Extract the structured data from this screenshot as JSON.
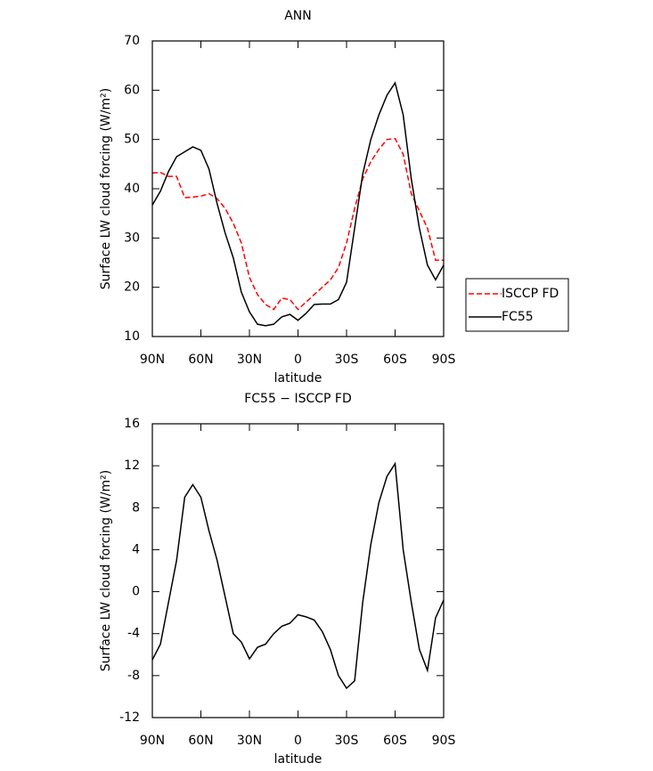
{
  "chart_data": [
    {
      "type": "line",
      "title": "ANN",
      "xlabel": "latitude",
      "ylabel": "Surface LW cloud forcing (W/m²)",
      "x": [
        90,
        85,
        80,
        75,
        70,
        65,
        60,
        55,
        50,
        45,
        40,
        35,
        30,
        25,
        20,
        15,
        10,
        5,
        0,
        -5,
        -10,
        -15,
        -20,
        -25,
        -30,
        -35,
        -40,
        -45,
        -50,
        -55,
        -60,
        -65,
        -70,
        -75,
        -80,
        -85,
        -90
      ],
      "series": [
        {
          "name": "ISCCP FD",
          "color": "#ff0000",
          "dash": true,
          "values": [
            43.2,
            43.3,
            42.5,
            42.5,
            38.2,
            38.3,
            38.5,
            39,
            38,
            36,
            33,
            29,
            22,
            18.5,
            16.5,
            15.5,
            17.8,
            17.5,
            15.5,
            17,
            18.5,
            20,
            21.5,
            24,
            29,
            36,
            42,
            45.5,
            48,
            50,
            50.2,
            47,
            39,
            35.5,
            32,
            25.5,
            25.5
          ]
        },
        {
          "name": "FC55",
          "color": "#000000",
          "dash": false,
          "values": [
            36.7,
            39.5,
            43.5,
            46.5,
            47.5,
            48.5,
            47.8,
            44,
            37,
            31,
            26,
            19,
            15,
            12.5,
            12.2,
            12.5,
            14,
            14.5,
            13.3,
            14.7,
            16.5,
            16.6,
            16.6,
            17.5,
            21,
            32,
            43,
            50,
            55,
            59,
            61.5,
            55,
            42,
            32,
            24.5,
            21.5,
            24.5
          ]
        }
      ],
      "xlim": [
        90,
        -90
      ],
      "xticks": [
        {
          "value": 90,
          "label": "90N"
        },
        {
          "value": 60,
          "label": "60N"
        },
        {
          "value": 30,
          "label": "30N"
        },
        0,
        {
          "value": -30,
          "label": "30S"
        },
        {
          "value": -60,
          "label": "60S"
        },
        {
          "value": -90,
          "label": "90S"
        }
      ],
      "ylim": [
        10,
        70
      ],
      "yticks": [
        10,
        20,
        30,
        40,
        50,
        60,
        70
      ],
      "legend": "right"
    },
    {
      "type": "line",
      "title": "FC55 − ISCCP FD",
      "xlabel": "latitude",
      "ylabel": "Surface LW cloud forcing (W/m²)",
      "x": [
        90,
        85,
        80,
        75,
        70,
        65,
        60,
        55,
        50,
        45,
        40,
        35,
        30,
        25,
        20,
        15,
        10,
        5,
        0,
        -5,
        -10,
        -15,
        -20,
        -25,
        -30,
        -35,
        -40,
        -45,
        -50,
        -55,
        -60,
        -65,
        -70,
        -75,
        -80,
        -85,
        -90
      ],
      "series": [
        {
          "color": "#000000",
          "dash": false,
          "values": [
            -6.5,
            -5,
            -1,
            3,
            9,
            10.2,
            9,
            5.8,
            3,
            -0.5,
            -4,
            -4.8,
            -6.4,
            -5.3,
            -5,
            -4,
            -3.3,
            -3,
            -2.2,
            -2.4,
            -2.7,
            -3.8,
            -5.5,
            -8,
            -9.2,
            -8.5,
            -1,
            4.5,
            8.5,
            11,
            12.2,
            4,
            -1,
            -5.5,
            -7.5,
            -2.5,
            -0.8
          ]
        }
      ],
      "xlim": [
        90,
        -90
      ],
      "xticks": [
        {
          "value": 90,
          "label": "90N"
        },
        {
          "value": 60,
          "label": "60N"
        },
        {
          "value": 30,
          "label": "30N"
        },
        0,
        {
          "value": -30,
          "label": "30S"
        },
        {
          "value": -60,
          "label": "60S"
        },
        {
          "value": -90,
          "label": "90S"
        }
      ],
      "ylim": [
        -12,
        16
      ],
      "yticks": [
        -12,
        -8,
        -4,
        0,
        4,
        8,
        12,
        16
      ]
    }
  ]
}
